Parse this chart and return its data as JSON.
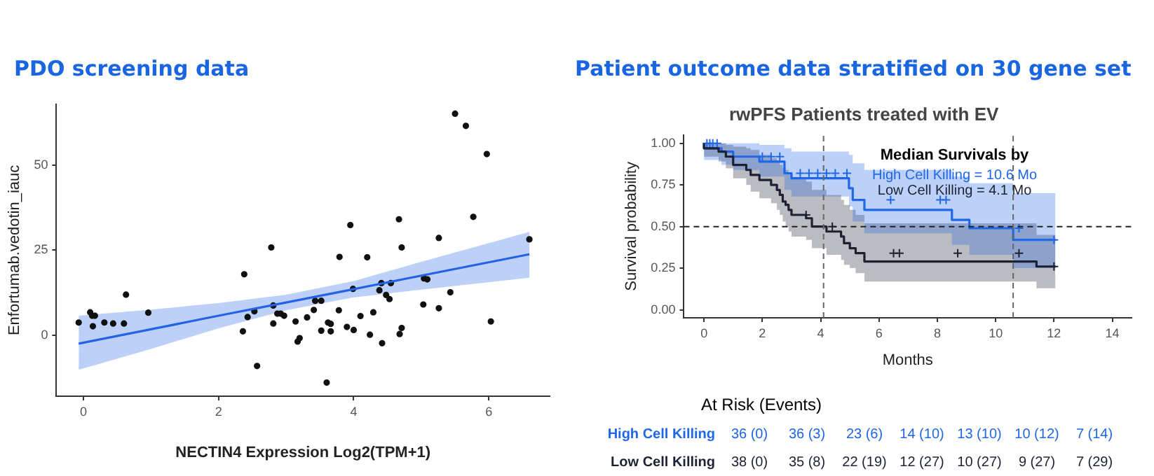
{
  "chart_data": [
    {
      "type": "scatter",
      "title": "PDO screening data",
      "xlabel": "NECTIN4 Expression Log2(TPM+1)",
      "ylabel": "Enfortumab.vedotin_iauc",
      "xlim": [
        -0.4,
        6.9
      ],
      "ylim": [
        -18,
        68
      ],
      "xticks": [
        0,
        2,
        4,
        6
      ],
      "yticks": [
        0,
        25,
        50
      ],
      "marker": "circle",
      "series": [
        {
          "color": "#111111",
          "x": [
            -0.07,
            0.1,
            0.13,
            0.17,
            0.14,
            0.31,
            0.44,
            0.6,
            0.63,
            0.96,
            2.36,
            2.38,
            2.43,
            2.53,
            2.57,
            2.78,
            2.81,
            2.81,
            2.87,
            2.92,
            2.97,
            3.14,
            3.17,
            3.2,
            3.31,
            3.41,
            3.43,
            3.52,
            3.52,
            3.6,
            3.62,
            3.66,
            3.66,
            3.78,
            3.79,
            3.95,
            3.9,
            3.99,
            4.0,
            4.1,
            4.2,
            4.24,
            4.29,
            4.38,
            4.41,
            4.42,
            4.48,
            4.53,
            4.55,
            4.67,
            4.68,
            4.71,
            4.71,
            5.03,
            5.04,
            5.09,
            5.26,
            5.26,
            5.43,
            5.5,
            5.66,
            5.77,
            5.97,
            6.03,
            6.6
          ],
          "values": [
            3.7,
            6.7,
            5.7,
            5.7,
            2.6,
            3.7,
            3.4,
            3.4,
            11.9,
            6.6,
            1.1,
            17.9,
            5.3,
            7.0,
            -9.1,
            25.8,
            8.7,
            3.4,
            6.3,
            6.3,
            5.7,
            4.0,
            -1.9,
            -0.9,
            5.2,
            7.4,
            10.1,
            10.1,
            1.3,
            -14.0,
            3.7,
            3.3,
            1.1,
            7.3,
            23.0,
            32.4,
            2.4,
            13.6,
            1.5,
            5.6,
            22.9,
            0.1,
            6.7,
            13.2,
            15.3,
            -2.4,
            11.8,
            10.6,
            15.3,
            34.1,
            0.3,
            2.1,
            25.8,
            9.0,
            16.7,
            16.4,
            28.6,
            7.9,
            12.6,
            65.2,
            61.6,
            34.8,
            53.3,
            4.0,
            28.2
          ]
        },
        {
          "type": "line",
          "color": "#2463e6",
          "marker": "none",
          "x": [
            -0.07,
            1,
            2,
            3,
            4,
            5,
            6.6
          ],
          "values": [
            -2.5,
            1.7,
            5.7,
            9.6,
            13.5,
            17.5,
            23.8
          ],
          "lower": [
            -10.2,
            -4.1,
            2.0,
            7.3,
            11.1,
            13.4,
            16.9
          ],
          "upper": [
            5.7,
            7.5,
            9.4,
            11.9,
            15.9,
            21.6,
            30.4
          ]
        }
      ]
    },
    {
      "type": "step",
      "title": "Patient outcome data stratified on 30 gene set",
      "subtitle": "rwPFS Patients treated with EV",
      "xlabel": "Months",
      "ylabel": "Survival probability",
      "xlim": [
        -0.69,
        14.66
      ],
      "ylim": [
        -0.048,
        1.05
      ],
      "xticks": [
        0,
        2,
        4,
        6,
        8,
        10,
        12,
        14
      ],
      "yticks": [
        {
          "value": 0,
          "label": "0.00"
        },
        {
          "value": 0.25,
          "label": "0.25"
        },
        {
          "value": 0.5,
          "label": "0.50"
        },
        {
          "value": 0.75,
          "label": "0.75"
        },
        {
          "value": 1,
          "label": "1.00"
        }
      ],
      "marker": "none",
      "ref_lines": [
        {
          "axis": "y",
          "value": 0.5,
          "color": "#222222",
          "line_style": "dashed"
        },
        {
          "axis": "x",
          "value": 4.1,
          "color": "#666666",
          "line_style": "dashed"
        },
        {
          "axis": "x",
          "value": 10.6,
          "color": "#666666",
          "line_style": "dashed"
        }
      ],
      "annotations": [
        "Median Survivals by",
        "High Cell Killing = 10.6 Mo",
        "Low Cell Killing = 4.1 Mo",
        "At Risk (Events)",
        "36 (0)",
        "36 (3)",
        "23 (6)",
        "14 (10)",
        "13 (10)",
        "10 (12)",
        "7 (14)",
        "38 (0)",
        "35 (8)",
        "22 (19)",
        "12 (27)",
        "10 (27)",
        "9 (27)",
        "7 (29)"
      ],
      "series": [
        {
          "name": "High Cell Killing",
          "color": "#2066e8",
          "x": [
            0,
            0.6,
            1.0,
            1.9,
            2.76,
            3.0,
            4.97,
            5.1,
            5.5,
            8.5,
            9.1,
            10.6,
            11.4,
            12.05
          ],
          "values": [
            1,
            0.97,
            0.95,
            0.92,
            0.89,
            0.82,
            0.79,
            0.73,
            0.66,
            0.6,
            0.54,
            0.49,
            0.42,
            0.42
          ],
          "lower": [
            1,
            0.9,
            0.87,
            0.84,
            0.8,
            0.72,
            0.68,
            0.62,
            0.53,
            0.46,
            0.39,
            0.33,
            0.25,
            0.25
          ],
          "upper": [
            1,
            1,
            1,
            1,
            0.99,
            0.97,
            0.95,
            0.93,
            0.88,
            0.84,
            0.8,
            0.76,
            0.7,
            0.7
          ]
        },
        {
          "name": "Low Cell Killing",
          "color": "#1c2233",
          "x": [
            0,
            0.5,
            0.75,
            1.0,
            1.45,
            1.6,
            1.9,
            2.3,
            2.5,
            2.6,
            2.7,
            2.8,
            2.9,
            3.0,
            3.5,
            3.7,
            4.2,
            4.7,
            4.8,
            5.0,
            5.2,
            5.5,
            11.4,
            11.8,
            12.05
          ],
          "values": [
            1,
            0.97,
            0.95,
            0.92,
            0.87,
            0.84,
            0.81,
            0.78,
            0.75,
            0.72,
            0.69,
            0.65,
            0.63,
            0.6,
            0.57,
            0.55,
            0.5,
            0.47,
            0.44,
            0.4,
            0.37,
            0.34,
            0.29,
            0.26,
            0.26
          ],
          "lower": [
            1,
            0.92,
            0.89,
            0.85,
            0.79,
            0.75,
            0.71,
            0.67,
            0.64,
            0.6,
            0.57,
            0.53,
            0.5,
            0.47,
            0.44,
            0.42,
            0.37,
            0.33,
            0.3,
            0.27,
            0.25,
            0.22,
            0.17,
            0.13,
            0.13
          ],
          "upper": [
            1,
            1,
            1,
            0.99,
            0.98,
            0.97,
            0.96,
            0.93,
            0.91,
            0.89,
            0.87,
            0.85,
            0.84,
            0.82,
            0.79,
            0.77,
            0.72,
            0.69,
            0.66,
            0.63,
            0.6,
            0.57,
            0.52,
            0.45,
            0.45
          ]
        },
        {
          "type": "scatter",
          "marker": "cross",
          "color": "#2066e8",
          "x": [
            0.1,
            0.2,
            0.3,
            0.45,
            2.0,
            2.3,
            2.6,
            3.3,
            3.6,
            3.9,
            4.2,
            4.5,
            4.9,
            6.4,
            8.1,
            8.3,
            10.8,
            12.0
          ],
          "values": [
            1,
            1,
            1,
            1,
            0.92,
            0.92,
            0.92,
            0.82,
            0.82,
            0.82,
            0.82,
            0.82,
            0.82,
            0.66,
            0.66,
            0.66,
            0.49,
            0.42
          ]
        },
        {
          "type": "scatter",
          "marker": "cross",
          "color": "#1c2233",
          "x": [
            3.5,
            4.4,
            6.5,
            6.7,
            8.7,
            10.8,
            12.0
          ],
          "values": [
            0.57,
            0.5,
            0.34,
            0.34,
            0.34,
            0.34,
            0.26
          ]
        }
      ]
    }
  ]
}
